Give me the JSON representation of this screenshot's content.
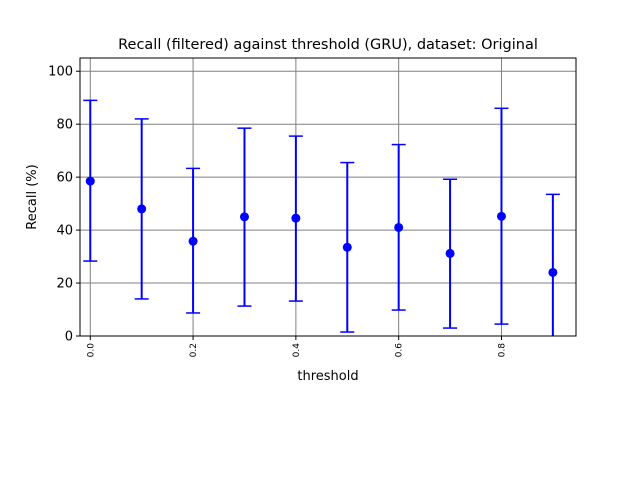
{
  "chart_data": {
    "type": "scatter",
    "title": "Recall (filtered) against threshold (GRU), dataset: Original",
    "xlabel": "threshold",
    "ylabel": "Recall (%)",
    "xlim": [
      -0.02,
      0.945
    ],
    "ylim": [
      0,
      105
    ],
    "grid": true,
    "xticks": [
      {
        "value": 0.0,
        "label": "0.0"
      },
      {
        "value": 0.2,
        "label": "0.2"
      },
      {
        "value": 0.4,
        "label": "0.4"
      },
      {
        "value": 0.6,
        "label": "0.6"
      },
      {
        "value": 0.8,
        "label": "0.8"
      }
    ],
    "yticks": [
      {
        "value": 0,
        "label": "0"
      },
      {
        "value": 20,
        "label": "20"
      },
      {
        "value": 40,
        "label": "40"
      },
      {
        "value": 60,
        "label": "60"
      },
      {
        "value": 80,
        "label": "80"
      },
      {
        "value": 100,
        "label": "100"
      }
    ],
    "series": [
      {
        "color": "#0000ff",
        "points": [
          {
            "x": 0.0,
            "y": 58.5,
            "low": 28.3,
            "high": 89.0
          },
          {
            "x": 0.1,
            "y": 48.0,
            "low": 14.0,
            "high": 82.0
          },
          {
            "x": 0.2,
            "y": 35.8,
            "low": 8.7,
            "high": 63.3
          },
          {
            "x": 0.3,
            "y": 45.0,
            "low": 11.3,
            "high": 78.5
          },
          {
            "x": 0.4,
            "y": 44.5,
            "low": 13.2,
            "high": 75.5
          },
          {
            "x": 0.5,
            "y": 33.5,
            "low": 1.5,
            "high": 65.5
          },
          {
            "x": 0.6,
            "y": 41.0,
            "low": 9.8,
            "high": 72.3
          },
          {
            "x": 0.7,
            "y": 31.2,
            "low": 3.0,
            "high": 59.2
          },
          {
            "x": 0.8,
            "y": 45.2,
            "low": 4.5,
            "high": 86.0
          },
          {
            "x": 0.9,
            "y": 24.0,
            "low": -5.5,
            "high": 53.5
          }
        ]
      }
    ]
  }
}
